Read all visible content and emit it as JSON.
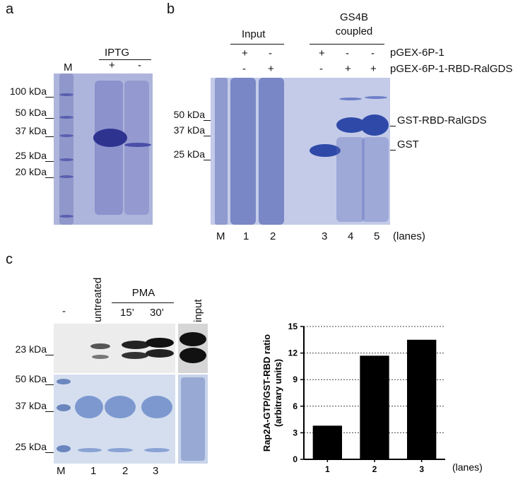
{
  "panels": {
    "a": {
      "label": "a",
      "treatment": "IPTG",
      "lane_signs": [
        "+",
        "-"
      ],
      "marker_lane": "M",
      "markers": [
        "100 kDa",
        "50 kDa",
        "37 kDa",
        "25 kDa",
        "20 kDa"
      ]
    },
    "b": {
      "label": "b",
      "group_input": "Input",
      "group_coupled_line1": "GS4B",
      "group_coupled_line2": "coupled",
      "plasmid1": "pGEX-6P-1",
      "plasmid2": "pGEX-6P-1-RBD-RalGDS",
      "signs_row1": [
        "+",
        "-",
        "+",
        "-",
        "-"
      ],
      "signs_row2": [
        "-",
        "+",
        "-",
        "+",
        "+"
      ],
      "markers": [
        "50 kDa",
        "37 kDa",
        "25 kDa"
      ],
      "band_labels": [
        "GST-RBD-RalGDS",
        "GST"
      ],
      "marker_lane": "M",
      "lanes": [
        "1",
        "2",
        "3",
        "4",
        "5"
      ],
      "lanes_label": "(lanes)"
    },
    "c": {
      "label": "c",
      "lane_headers": [
        "-",
        "untreated"
      ],
      "pma": "PMA",
      "times": [
        "15’",
        "30’"
      ],
      "input": "input",
      "blot_marker": "23 kDa",
      "gel_markers": [
        "50 kDa",
        "37 kDa",
        "25 kDa"
      ],
      "marker_lane": "M",
      "lanes": [
        "1",
        "2",
        "3"
      ]
    }
  },
  "chart_data": {
    "type": "bar",
    "categories": [
      "1",
      "2",
      "3"
    ],
    "values": [
      3.8,
      11.7,
      13.5
    ],
    "ylabel_line1": "Rap2A-GTP/GST-RBD ratio",
    "ylabel_line2": "(arbitrary units)",
    "xlabel": "(lanes)",
    "ylim": [
      0,
      15
    ],
    "yticks": [
      "0",
      "3",
      "6",
      "9",
      "12",
      "15"
    ],
    "grid": "horizontal dotted",
    "bar_color": "#000000"
  }
}
